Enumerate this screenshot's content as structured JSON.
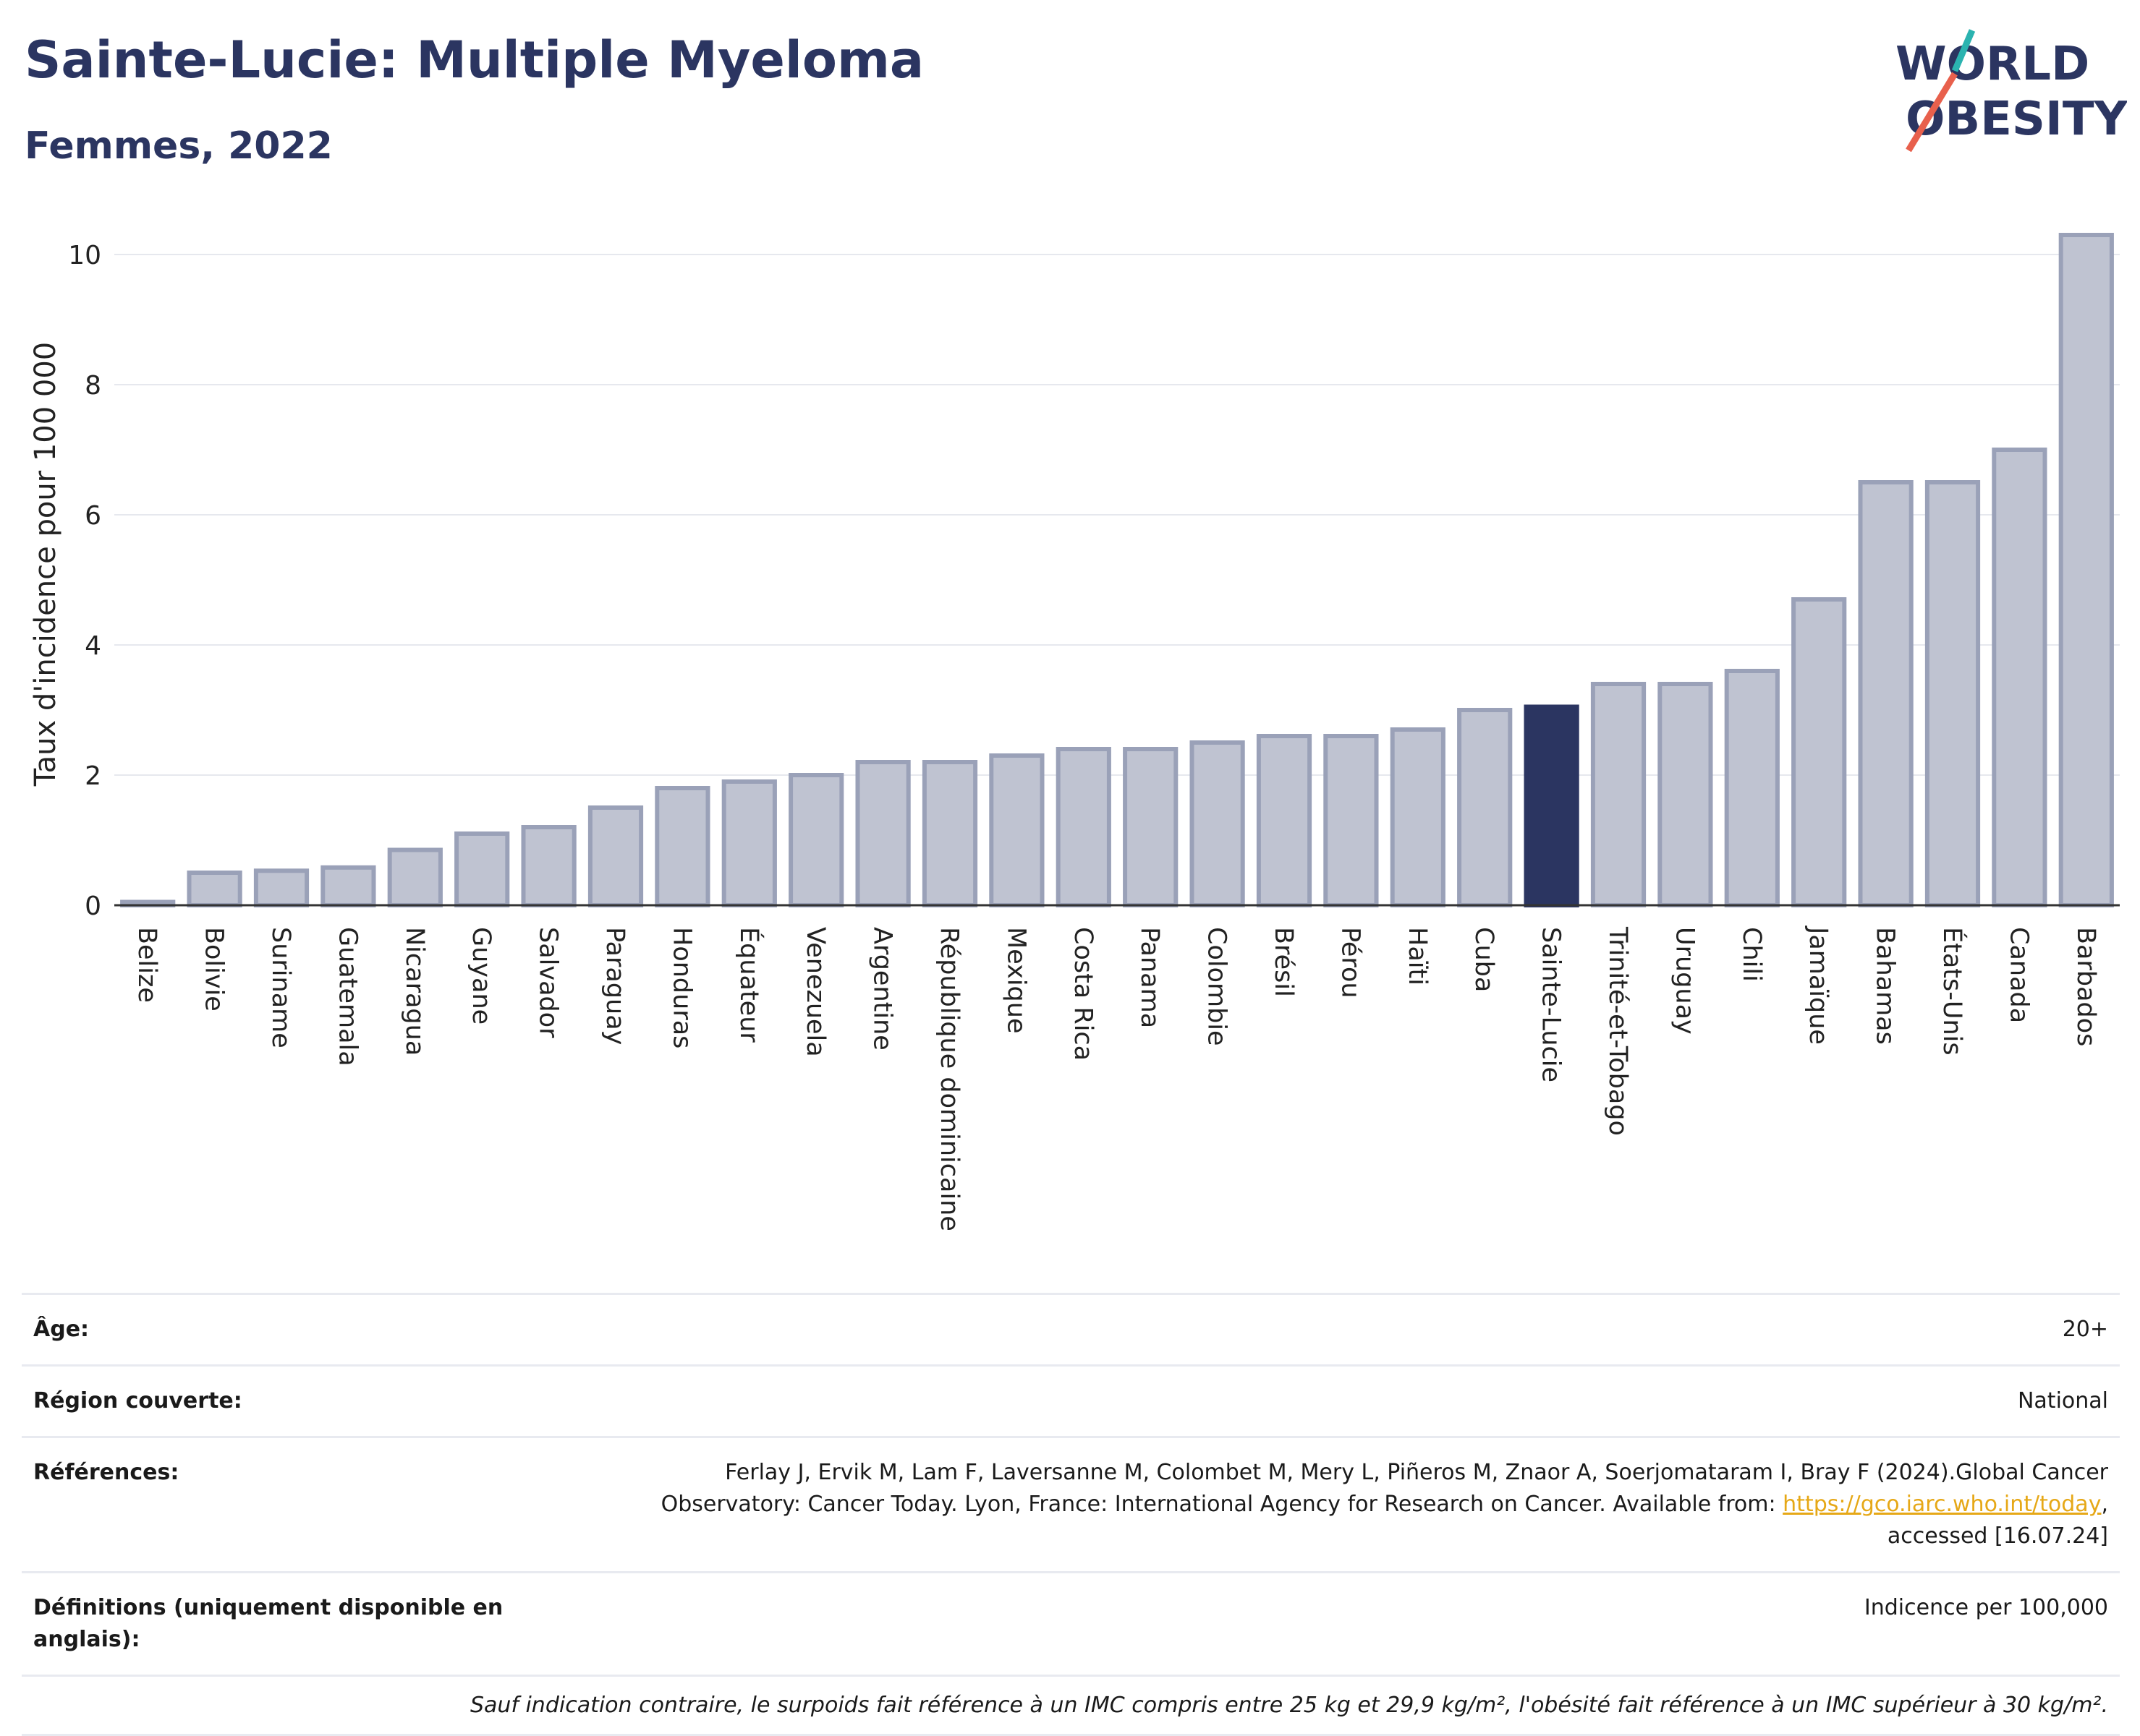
{
  "header": {
    "title": "Sainte-Lucie: Multiple Myeloma",
    "subtitle": "Femmes, 2022"
  },
  "logo": {
    "line1": "WORLD",
    "line2": "OBESITY",
    "accent_teal": "#2bb3b0",
    "accent_red": "#e8604c"
  },
  "colors": {
    "bar": "#bfc3d1",
    "bar_border": "#9aa1b8",
    "highlight": "#2b3561",
    "grid": "#e6e8ee"
  },
  "chart_data": {
    "type": "bar",
    "ylabel": "Taux d'incidence pour 100 000",
    "ylim": [
      0,
      10.4
    ],
    "yticks": [
      0,
      2,
      4,
      6,
      8,
      10
    ],
    "grid": true,
    "highlight": "Sainte-Lucie",
    "categories": [
      "Belize",
      "Bolivie",
      "Suriname",
      "Guatemala",
      "Nicaragua",
      "Guyane",
      "Salvador",
      "Paraguay",
      "Honduras",
      "Équateur",
      "Venezuela",
      "Argentine",
      "République dominicaine",
      "Mexique",
      "Costa Rica",
      "Panama",
      "Colombie",
      "Brésil",
      "Pérou",
      "Haïti",
      "Cuba",
      "Sainte-Lucie",
      "Trinité-et-Tobago",
      "Uruguay",
      "Chili",
      "Jamaïque",
      "Bahamas",
      "États-Unis",
      "Canada",
      "Barbados"
    ],
    "values": [
      0.05,
      0.5,
      0.53,
      0.58,
      0.85,
      1.1,
      1.2,
      1.5,
      1.8,
      1.9,
      2.0,
      2.2,
      2.2,
      2.3,
      2.4,
      2.4,
      2.5,
      2.6,
      2.6,
      2.7,
      3.0,
      3.05,
      3.4,
      3.4,
      3.6,
      4.7,
      6.5,
      6.5,
      7.0,
      10.3
    ]
  },
  "info": {
    "age_label": "Âge:",
    "age_value": "20+",
    "region_label": "Région couverte:",
    "region_value": "National",
    "ref_label": "Références:",
    "ref_text1": "Ferlay J, Ervik M, Lam F, Laversanne M, Colombet M, Mery L, Piñeros M, Znaor A, Soerjomataram I, Bray F (2024).Global Cancer",
    "ref_text2": "Observatory: Cancer Today. Lyon, France: International Agency for Research on Cancer. Available from: ",
    "ref_link": "https://gco.iarc.who.int/today",
    "ref_text3": "accessed [16.07.24]",
    "def_label": "Définitions (uniquement disponible en anglais):",
    "def_value": "Indicence per 100,000",
    "note": "Sauf indication contraire, le surpoids fait référence à un IMC compris entre 25 kg et 29,9 kg/m², l'obésité fait référence à un IMC supérieur à 30 kg/m²."
  }
}
